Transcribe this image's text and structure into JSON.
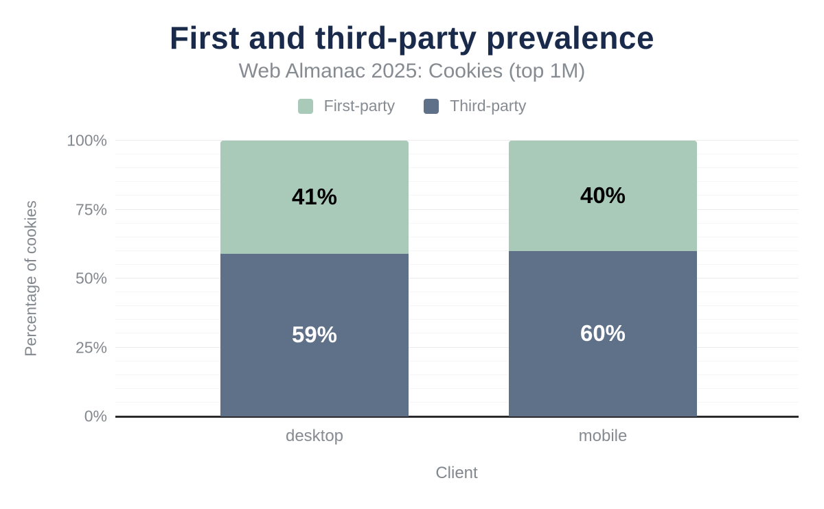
{
  "chart_data": {
    "type": "bar",
    "stacked": true,
    "title": "First and third-party prevalence",
    "subtitle": "Web Almanac 2025: Cookies (top 1M)",
    "xlabel": "Client",
    "ylabel": "Percentage of cookies",
    "categories": [
      "desktop",
      "mobile"
    ],
    "series": [
      {
        "name": "Third-party",
        "values": [
          59,
          60
        ],
        "color": "#5f7089",
        "label_color": "#ffffff"
      },
      {
        "name": "First-party",
        "values": [
          41,
          40
        ],
        "color": "#a9cab9",
        "label_color": "#000000"
      }
    ],
    "legend_order": [
      "First-party",
      "Third-party"
    ],
    "legend_position": "top",
    "value_suffix": "%",
    "ylim": [
      0,
      100
    ],
    "y_ticks": [
      {
        "value": 0,
        "label": "0%"
      },
      {
        "value": 25,
        "label": "25%"
      },
      {
        "value": 50,
        "label": "50%"
      },
      {
        "value": 75,
        "label": "75%"
      },
      {
        "value": 100,
        "label": "100%"
      }
    ],
    "grid": {
      "minor_step": 5,
      "major_step": 25,
      "orientation": "horizontal"
    }
  },
  "colors": {
    "background": "#ffffff",
    "title_text": "#1a2a4a",
    "subtitle_text": "#868b92",
    "axis_text": "#83888f",
    "grid_minor": "#f6f6f7",
    "grid_major": "#ececee",
    "axis_line": "#2a2a2c"
  }
}
